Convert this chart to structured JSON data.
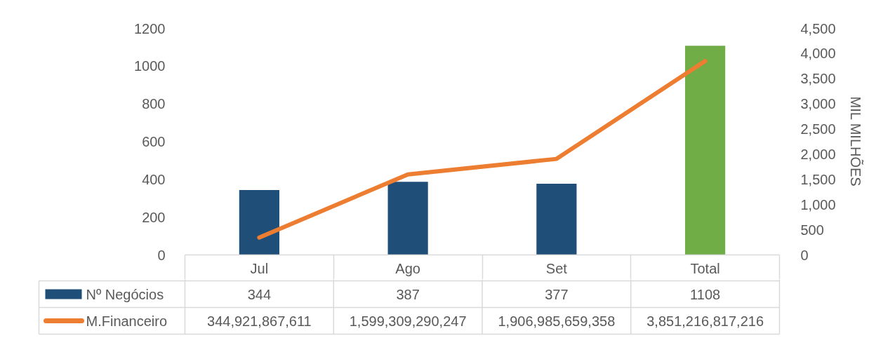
{
  "chart_data": {
    "type": "bar",
    "categories": [
      "Jul",
      "Ago",
      "Set",
      "Total"
    ],
    "series": [
      {
        "name": "Nº Negócios",
        "color": "#1f4e79",
        "colors": [
          "#1f4e79",
          "#1f4e79",
          "#1f4e79",
          "#70ad47"
        ],
        "values": [
          344,
          387,
          377,
          1108
        ],
        "value_labels": [
          "344",
          "387",
          "377",
          "1108"
        ]
      },
      {
        "name": "M.Financeiro",
        "type": "line",
        "axis": "y2",
        "color": "#ed7d31",
        "values": [
          345,
          1599,
          1907,
          3851
        ]
      }
    ],
    "annotations": [
      "344,921,867,611",
      "1,599,309,290,247",
      "1,906,985,659,358",
      "3,851,216,817,216"
    ],
    "y2label": "MIL MILHÕES",
    "ylim": [
      0,
      1200
    ],
    "yticks": [
      0,
      200,
      400,
      600,
      800,
      1000,
      1200
    ],
    "y2lim": [
      0,
      4500
    ],
    "y2ticks": [
      0,
      500,
      {
        "value": 1000,
        "label": "1,000"
      },
      {
        "value": 1500,
        "label": "1,500"
      },
      {
        "value": 2000,
        "label": "2,000"
      },
      {
        "value": 2500,
        "label": "2,500"
      },
      {
        "value": 3000,
        "label": "3,000"
      },
      {
        "value": 3500,
        "label": "3,500"
      },
      {
        "value": 4000,
        "label": "4,000"
      },
      {
        "value": 4500,
        "label": "4,500"
      }
    ],
    "grid": false,
    "legend": "bottom left",
    "marker": "none",
    "line_style": "solid"
  }
}
